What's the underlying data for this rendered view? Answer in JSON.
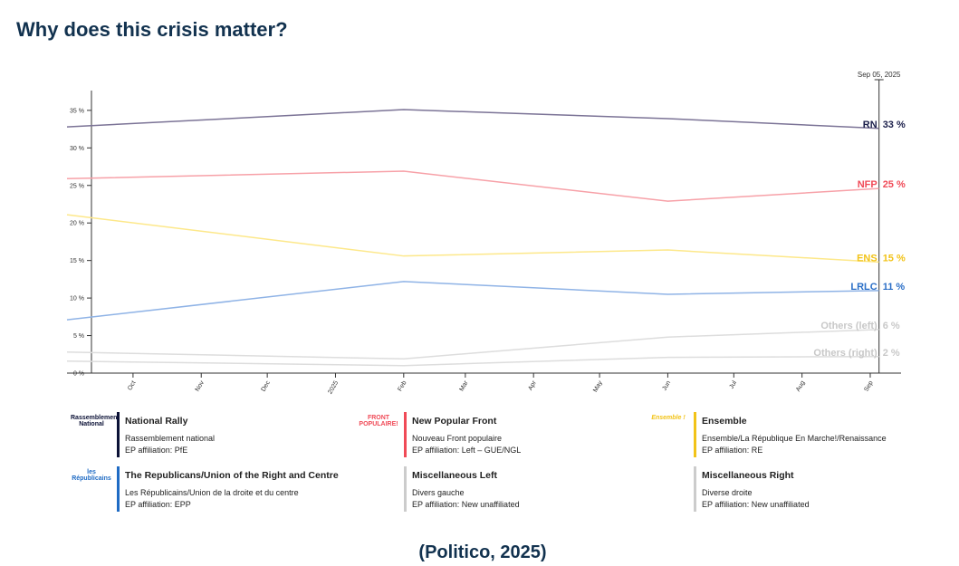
{
  "page": {
    "title": "Why does this crisis matter?",
    "source": "(Politico, 2025)"
  },
  "chart_data": {
    "type": "line",
    "date_label": "Sep 05, 2025",
    "x": [
      "2024-09",
      "2025-02",
      "2025-06",
      "2025-09-05"
    ],
    "xlim": [
      "2024-09",
      "2025-09-15"
    ],
    "xticks": [
      {
        "value": "2024-10",
        "label": "Oct"
      },
      {
        "value": "2024-11",
        "label": "Nov"
      },
      {
        "value": "2024-12",
        "label": "Dec"
      },
      {
        "value": "2025-01",
        "label": "2025"
      },
      {
        "value": "2025-02",
        "label": "Feb"
      },
      {
        "value": "2025-03",
        "label": "Mar"
      },
      {
        "value": "2025-04",
        "label": "Apr"
      },
      {
        "value": "2025-05",
        "label": "May"
      },
      {
        "value": "2025-06",
        "label": "Jun"
      },
      {
        "value": "2025-07",
        "label": "Jul"
      },
      {
        "value": "2025-08",
        "label": "Aug"
      },
      {
        "value": "2025-09",
        "label": "Sep"
      }
    ],
    "ylim": [
      0,
      38
    ],
    "yticks": [
      {
        "value": 0,
        "label": "0 %"
      },
      {
        "value": 5,
        "label": "5 %"
      },
      {
        "value": 10,
        "label": "10 %"
      },
      {
        "value": 15,
        "label": "15 %"
      },
      {
        "value": 20,
        "label": "20 %"
      },
      {
        "value": 25,
        "label": "25 %"
      },
      {
        "value": 30,
        "label": "30 %"
      },
      {
        "value": 35,
        "label": "35 %"
      }
    ],
    "series": [
      {
        "name": "RN",
        "color": "#7b7396",
        "label_color": "#1b1f4b",
        "values": [
          32.8,
          35.1,
          33.9,
          32.6
        ],
        "value_labels": [
          null,
          null,
          null,
          "33 %"
        ]
      },
      {
        "name": "NFP",
        "color": "#f7a1a8",
        "label_color": "#f04a57",
        "values": [
          25.9,
          26.9,
          22.9,
          24.6
        ],
        "value_labels": [
          null,
          null,
          null,
          "25 %"
        ]
      },
      {
        "name": "ENS",
        "color": "#fde88a",
        "label_color": "#f2c318",
        "values": [
          21.1,
          15.6,
          16.4,
          14.8
        ],
        "value_labels": [
          null,
          null,
          null,
          "15 %"
        ]
      },
      {
        "name": "LRLC",
        "color": "#8fb3e6",
        "label_color": "#2b6fc7",
        "values": [
          7.1,
          12.2,
          10.5,
          11.0
        ],
        "value_labels": [
          null,
          null,
          null,
          "11 %"
        ]
      },
      {
        "name": "Others (left)",
        "color": "#dddddd",
        "label_color": "#c8c8c8",
        "values": [
          2.8,
          1.9,
          4.8,
          5.8
        ],
        "value_labels": [
          null,
          null,
          null,
          "6 %"
        ]
      },
      {
        "name": "Others (right)",
        "color": "#dddddd",
        "label_color": "#c8c8c8",
        "values": [
          1.6,
          1.0,
          2.1,
          2.2
        ],
        "value_labels": [
          null,
          null,
          null,
          "2 %"
        ]
      }
    ]
  },
  "parties": [
    {
      "logo": "Rassemblement National",
      "name": "National Rally",
      "full": "Rassemblement national",
      "affiliation": "EP affiliation: PfE",
      "color": "#0b1136"
    },
    {
      "logo": "FRONT POPULAIRE!",
      "name": "New Popular Front",
      "full": "Nouveau Front populaire",
      "affiliation": "EP affiliation: Left – GUE/NGL",
      "color": "#f04a57"
    },
    {
      "logo": "Ensemble !",
      "name": "Ensemble",
      "full": "Ensemble/La République En Marche!/Renaissance",
      "affiliation": "EP affiliation: RE",
      "color": "#f2c318"
    },
    {
      "logo": "les Républicains",
      "name": "The Republicans/Union of the Right and Centre",
      "full": "Les Républicains/Union de la droite et du centre",
      "affiliation": "EP affiliation: EPP",
      "color": "#1f6bc4"
    },
    {
      "logo": null,
      "name": "Miscellaneous Left",
      "full": "Divers gauche",
      "affiliation": "EP affiliation: New unaffiliated",
      "color": "#cccccc"
    },
    {
      "logo": null,
      "name": "Miscellaneous Right",
      "full": "Diverse droite",
      "affiliation": "EP affiliation: New unaffiliated",
      "color": "#cccccc"
    }
  ]
}
